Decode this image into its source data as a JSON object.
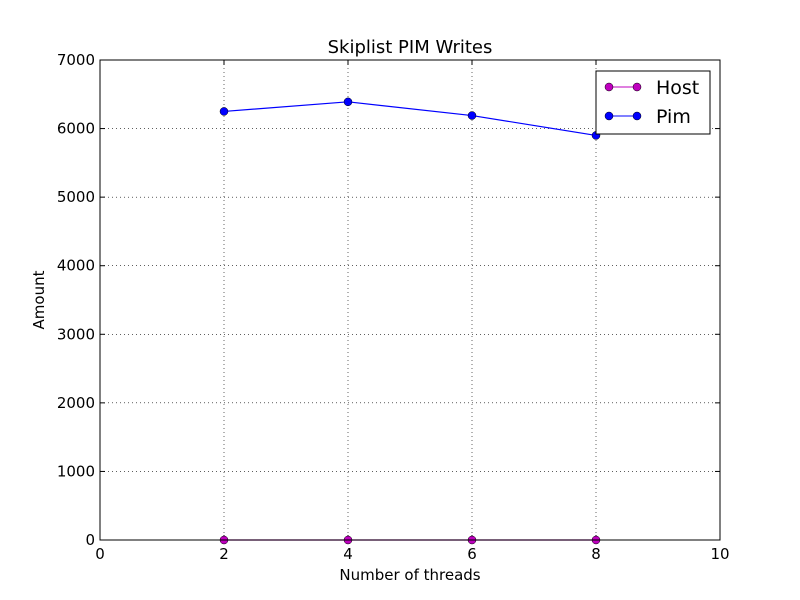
{
  "chart_data": {
    "type": "line",
    "title": "Skiplist PIM Writes",
    "xlabel": "Number of threads",
    "ylabel": "Amount",
    "xlim": [
      0,
      10
    ],
    "ylim": [
      0,
      7000
    ],
    "xticks": [
      0,
      2,
      4,
      6,
      8,
      10
    ],
    "yticks": [
      0,
      1000,
      2000,
      3000,
      4000,
      5000,
      6000,
      7000
    ],
    "grid": true,
    "grid_style": "dotted",
    "legend_position": "top-right",
    "x": [
      2,
      4,
      6,
      8
    ],
    "series": [
      {
        "name": "Host",
        "color": "#bf00bf",
        "marker": "circle",
        "values": [
          0,
          0,
          0,
          0
        ]
      },
      {
        "name": "Pim",
        "color": "#0000ff",
        "marker": "circle",
        "values": [
          6250,
          6390,
          6190,
          5900
        ]
      }
    ]
  }
}
